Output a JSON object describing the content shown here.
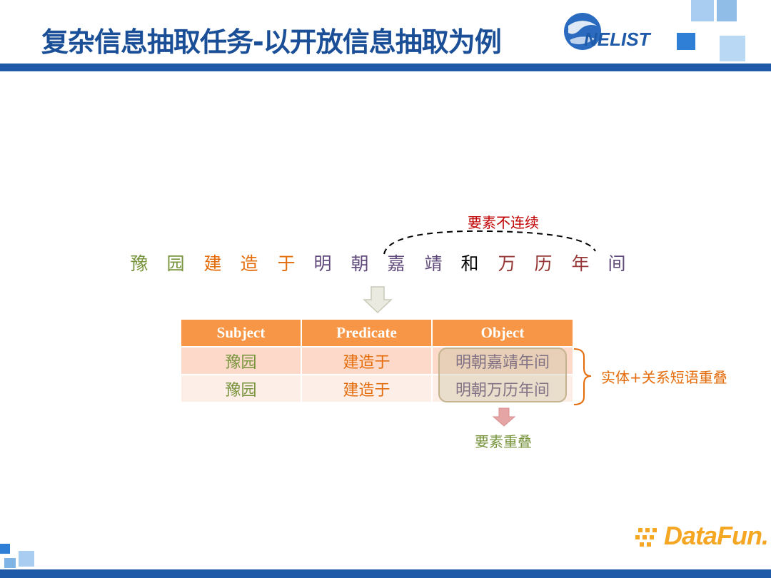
{
  "slide": {
    "title": "复杂信息抽取任务-以开放信息抽取为例",
    "logo_text": "NELIST",
    "brand_text": "DataFun.",
    "colors": {
      "header_blue": "#1f5aa8",
      "title_blue": "#1a4e96",
      "table_header": "#f79646",
      "green": "#77933c",
      "orange": "#e46c0a",
      "purple": "#604a7b",
      "red_label": "#c00000"
    }
  },
  "sentence": {
    "chars": [
      {
        "text": "豫",
        "color": "green"
      },
      {
        "text": "园",
        "color": "green"
      },
      {
        "text": "建",
        "color": "orange"
      },
      {
        "text": "造",
        "color": "orange"
      },
      {
        "text": "于",
        "color": "orange"
      },
      {
        "text": "明",
        "color": "purple"
      },
      {
        "text": "朝",
        "color": "purple"
      },
      {
        "text": "嘉",
        "color": "purple"
      },
      {
        "text": "靖",
        "color": "purple"
      },
      {
        "text": "和",
        "color": "black"
      },
      {
        "text": "万",
        "color": "red"
      },
      {
        "text": "历",
        "color": "red"
      },
      {
        "text": "年",
        "color": "red"
      },
      {
        "text": "间",
        "color": "purple"
      }
    ]
  },
  "annotations": {
    "discontinuous": "要素不连续",
    "overlap_entity_relation": "实体+关系短语重叠",
    "element_overlap": "要素重叠"
  },
  "table": {
    "headers": [
      "Subject",
      "Predicate",
      "Object"
    ],
    "rows": [
      {
        "subject": "豫园",
        "predicate": "建造于",
        "object": "明朝嘉靖年间"
      },
      {
        "subject": "豫园",
        "predicate": "建造于",
        "object": "明朝万历年间"
      }
    ]
  }
}
